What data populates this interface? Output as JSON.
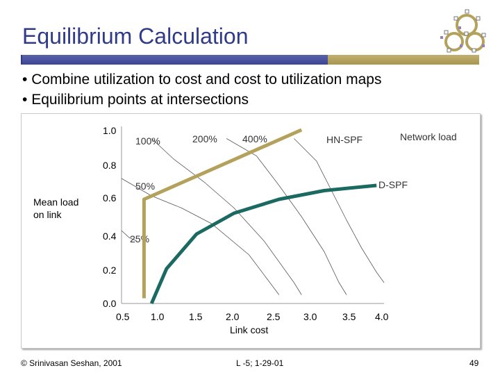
{
  "slide": {
    "title": "Equilibrium Calculation",
    "bullets": [
      "Combine utilization to cost and cost to utilization maps",
      "Equilibrium points at intersections"
    ]
  },
  "colors": {
    "title": "#2f3a88",
    "rule_blue": "#3a4595",
    "rule_tan": "#b0a060",
    "hn_spf": "#b4a15c",
    "d_spf": "#1b6a62",
    "network_load": "#888888"
  },
  "chart_data": {
    "type": "line",
    "ylabel": "Mean load on link",
    "xlabel": "Link cost",
    "x_ticks": [
      "0.5",
      "1.0",
      "1.5",
      "2.0",
      "2.5",
      "3.0",
      "3.5",
      "4.0"
    ],
    "y_ticks": [
      "0.0",
      "0.2",
      "0.4",
      "0.6",
      "0.8",
      "1.0"
    ],
    "xlim": [
      0.5,
      4.0
    ],
    "ylim": [
      0.0,
      1.0
    ],
    "series": [
      {
        "name": "HN-SPF",
        "style": "thick-tan",
        "points": [
          [
            0.8,
            0.03
          ],
          [
            0.8,
            0.6
          ],
          [
            2.9,
            1.0
          ]
        ]
      },
      {
        "name": "D-SPF",
        "style": "thick-teal",
        "points": [
          [
            0.9,
            0.0
          ],
          [
            1.1,
            0.2
          ],
          [
            1.5,
            0.4
          ],
          [
            2.0,
            0.52
          ],
          [
            2.6,
            0.6
          ],
          [
            3.2,
            0.65
          ],
          [
            3.9,
            0.68
          ]
        ]
      }
    ],
    "load_curves": [
      {
        "label": "25%",
        "points": [
          [
            0.5,
            0.42
          ],
          [
            0.6,
            0.38
          ],
          [
            0.7,
            0.36
          ]
        ]
      },
      {
        "label": "50%",
        "points": [
          [
            0.5,
            0.72
          ],
          [
            0.9,
            0.62
          ],
          [
            1.3,
            0.55
          ],
          [
            1.7,
            0.46
          ],
          [
            2.2,
            0.28
          ],
          [
            2.6,
            0.05
          ]
        ]
      },
      {
        "label": "100%",
        "points": [
          [
            0.9,
            0.95
          ],
          [
            1.2,
            0.83
          ],
          [
            1.6,
            0.7
          ],
          [
            2.0,
            0.55
          ],
          [
            2.4,
            0.36
          ],
          [
            2.8,
            0.12
          ],
          [
            2.9,
            0.05
          ]
        ]
      },
      {
        "label": "200%",
        "points": [
          [
            1.9,
            0.95
          ],
          [
            2.3,
            0.85
          ],
          [
            2.6,
            0.68
          ],
          [
            2.9,
            0.5
          ],
          [
            3.2,
            0.3
          ],
          [
            3.4,
            0.12
          ],
          [
            3.5,
            0.05
          ]
        ]
      },
      {
        "label": "400%",
        "points": [
          [
            2.8,
            0.95
          ],
          [
            3.1,
            0.82
          ],
          [
            3.3,
            0.65
          ],
          [
            3.5,
            0.48
          ],
          [
            3.7,
            0.32
          ],
          [
            3.9,
            0.18
          ],
          [
            4.0,
            0.12
          ]
        ]
      }
    ],
    "annotations": {
      "hn_spf": "HN-SPF",
      "network_load": "Network load",
      "d_spf": "D-SPF"
    }
  },
  "footer": {
    "left": "© Srinivasan Seshan, 2001",
    "middle": "L -5; 1-29-01",
    "page": "49"
  }
}
